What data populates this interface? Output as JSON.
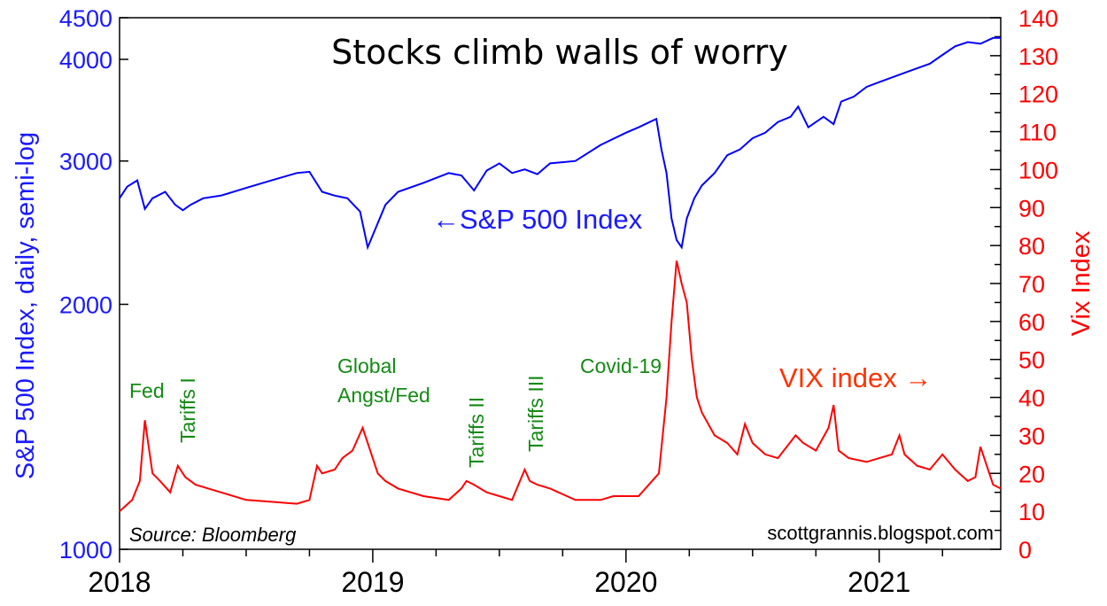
{
  "chart_data": {
    "type": "line",
    "title": "Stocks climb walls of worry",
    "ylabel_left": "S&P 500 Index, daily, semi-log",
    "ylabel_right": "Vix Index",
    "source": "Source: Bloomberg",
    "credit": "scottgrannis.blogspot.com",
    "x_ticks": [
      "2018",
      "2019",
      "2020",
      "2021"
    ],
    "y_left_ticks": [
      1000,
      2000,
      3000,
      4000,
      4500
    ],
    "y_right_ticks": [
      0,
      10,
      20,
      30,
      40,
      50,
      60,
      70,
      80,
      90,
      100,
      110,
      120,
      130,
      140
    ],
    "ylim_left": [
      1000,
      4500
    ],
    "ylim_right": [
      0,
      140
    ],
    "xlim": [
      2018.0,
      2021.48
    ],
    "series": [
      {
        "name": "S&P 500 Index",
        "label": "←S&P 500 Index",
        "axis": "left",
        "color": "#0000ff",
        "x": [
          2018.0,
          2018.03,
          2018.07,
          2018.1,
          2018.13,
          2018.18,
          2018.22,
          2018.25,
          2018.28,
          2018.33,
          2018.4,
          2018.5,
          2018.6,
          2018.7,
          2018.75,
          2018.8,
          2018.85,
          2018.9,
          2018.95,
          2018.98,
          2019.05,
          2019.1,
          2019.2,
          2019.3,
          2019.35,
          2019.4,
          2019.45,
          2019.5,
          2019.55,
          2019.6,
          2019.65,
          2019.7,
          2019.8,
          2019.9,
          2020.0,
          2020.05,
          2020.12,
          2020.14,
          2020.16,
          2020.18,
          2020.2,
          2020.22,
          2020.24,
          2020.27,
          2020.3,
          2020.35,
          2020.4,
          2020.45,
          2020.5,
          2020.55,
          2020.6,
          2020.65,
          2020.68,
          2020.72,
          2020.78,
          2020.82,
          2020.85,
          2020.9,
          2020.95,
          2021.0,
          2021.05,
          2021.1,
          2021.15,
          2021.2,
          2021.25,
          2021.3,
          2021.35,
          2021.4,
          2021.45,
          2021.48
        ],
        "values": [
          2700,
          2790,
          2840,
          2620,
          2700,
          2750,
          2650,
          2610,
          2650,
          2700,
          2720,
          2780,
          2840,
          2900,
          2910,
          2750,
          2720,
          2700,
          2600,
          2350,
          2650,
          2750,
          2820,
          2900,
          2880,
          2760,
          2920,
          2980,
          2900,
          2930,
          2890,
          2980,
          3000,
          3140,
          3250,
          3300,
          3380,
          3100,
          2900,
          2550,
          2400,
          2350,
          2550,
          2700,
          2800,
          2900,
          3050,
          3100,
          3200,
          3250,
          3350,
          3400,
          3500,
          3300,
          3400,
          3330,
          3550,
          3600,
          3700,
          3750,
          3800,
          3850,
          3900,
          3950,
          4050,
          4150,
          4200,
          4180,
          4250,
          4250
        ]
      },
      {
        "name": "VIX index",
        "label": "VIX index →",
        "axis": "right",
        "color": "#ff0000",
        "x": [
          2018.0,
          2018.05,
          2018.08,
          2018.1,
          2018.13,
          2018.16,
          2018.2,
          2018.23,
          2018.26,
          2018.3,
          2018.4,
          2018.5,
          2018.6,
          2018.7,
          2018.75,
          2018.78,
          2018.8,
          2018.85,
          2018.88,
          2018.92,
          2018.96,
          2018.98,
          2019.02,
          2019.05,
          2019.1,
          2019.2,
          2019.3,
          2019.35,
          2019.37,
          2019.4,
          2019.45,
          2019.5,
          2019.55,
          2019.6,
          2019.62,
          2019.65,
          2019.7,
          2019.8,
          2019.9,
          2019.95,
          2020.0,
          2020.05,
          2020.13,
          2020.16,
          2020.18,
          2020.2,
          2020.22,
          2020.24,
          2020.26,
          2020.28,
          2020.3,
          2020.35,
          2020.4,
          2020.44,
          2020.47,
          2020.5,
          2020.55,
          2020.6,
          2020.67,
          2020.7,
          2020.75,
          2020.8,
          2020.82,
          2020.84,
          2020.88,
          2020.95,
          2021.0,
          2021.05,
          2021.08,
          2021.1,
          2021.15,
          2021.2,
          2021.25,
          2021.3,
          2021.35,
          2021.38,
          2021.4,
          2021.45,
          2021.48
        ],
        "values": [
          10,
          13,
          18,
          34,
          20,
          18,
          15,
          22,
          19,
          17,
          15,
          13,
          12.5,
          12,
          13,
          22,
          20,
          21,
          24,
          26,
          32,
          28,
          20,
          18,
          16,
          14,
          13,
          16,
          18,
          17,
          15,
          14,
          13,
          21,
          18,
          17,
          16,
          13,
          13,
          14,
          14,
          14,
          20,
          40,
          60,
          76,
          70,
          65,
          50,
          40,
          36,
          30,
          28,
          25,
          33,
          28,
          25,
          24,
          30,
          28,
          26,
          32,
          38,
          26,
          24,
          23,
          24,
          25,
          30,
          25,
          22,
          21,
          25,
          21,
          18,
          19,
          27,
          17,
          16
        ]
      }
    ],
    "annotations": [
      {
        "text": "Fed"
      },
      {
        "text": "Tariffs I"
      },
      {
        "text": "Global"
      },
      {
        "text": "Angst/Fed"
      },
      {
        "text": "Tariffs II"
      },
      {
        "text": "Tariffs III"
      },
      {
        "text": "Covid-19"
      }
    ],
    "colors": {
      "sp500": "#0000ff",
      "vix": "#ff0000",
      "annotation": "#138a13",
      "sp_label": "#1a1aff",
      "vix_label": "#ff3300"
    }
  }
}
